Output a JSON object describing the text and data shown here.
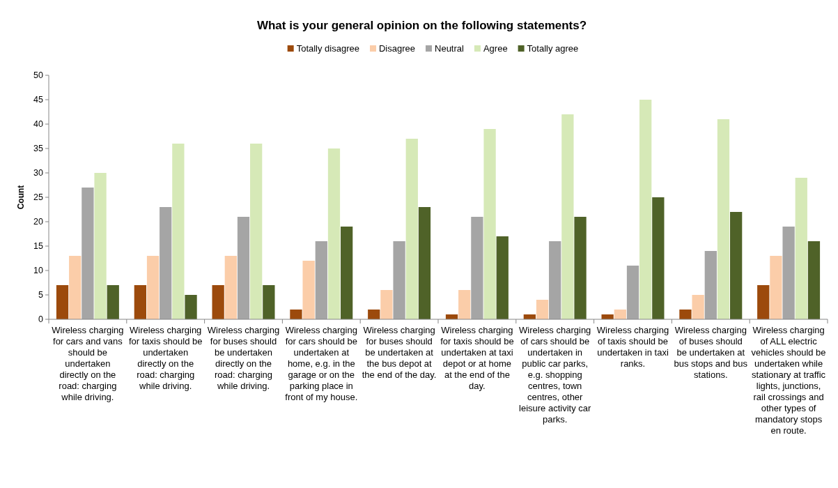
{
  "chart_data": {
    "type": "bar",
    "title": "What is your general opinion on the following statements?",
    "ylabel": "Count",
    "categories": [
      "Wireless charging for cars and vans should be undertaken directly on the road: charging while driving.",
      "Wireless charging for taxis should be undertaken directly on the road: charging while driving.",
      "Wireless charging for buses should be undertaken directly on the road: charging while driving.",
      "Wireless charging for cars should be undertaken at home, e.g. in the garage or on the parking place in front of my house.",
      "Wireless charging for buses should be undertaken at the bus depot at the end of the day.",
      "Wireless charging for taxis should be undertaken at taxi depot or at home at the end of the day.",
      "Wireless charging of cars should be undertaken in public car parks, e.g. shopping centres, town centres, other leisure activity car parks.",
      "Wireless charging of taxis should be undertaken in taxi ranks.",
      "Wireless charging of buses should be undertaken at bus stops and bus stations.",
      "Wireless charging of ALL electric vehicles should be undertaken while stationary at traffic lights, junctions, rail crossings and other types of mandatory stops en route."
    ],
    "series": [
      {
        "name": "Totally disagree",
        "color": "#9c4a0c",
        "values": [
          7,
          7,
          7,
          2,
          2,
          1,
          1,
          1,
          2,
          7
        ]
      },
      {
        "name": "Disagree",
        "color": "#fbcda9",
        "values": [
          13,
          13,
          13,
          12,
          6,
          6,
          4,
          2,
          5,
          13
        ]
      },
      {
        "name": "Neutral",
        "color": "#a5a5a5",
        "values": [
          27,
          23,
          21,
          16,
          16,
          21,
          16,
          11,
          14,
          19
        ]
      },
      {
        "name": "Agree",
        "color": "#d6e9b7",
        "values": [
          30,
          36,
          36,
          35,
          37,
          39,
          42,
          45,
          41,
          29
        ]
      },
      {
        "name": "Totally agree",
        "color": "#4f6228",
        "values": [
          7,
          5,
          7,
          19,
          23,
          17,
          21,
          25,
          22,
          16
        ]
      }
    ],
    "ylim": [
      0,
      50
    ],
    "yticks": [
      0,
      5,
      10,
      15,
      20,
      25,
      30,
      35,
      40,
      45,
      50
    ],
    "legend": "top"
  }
}
